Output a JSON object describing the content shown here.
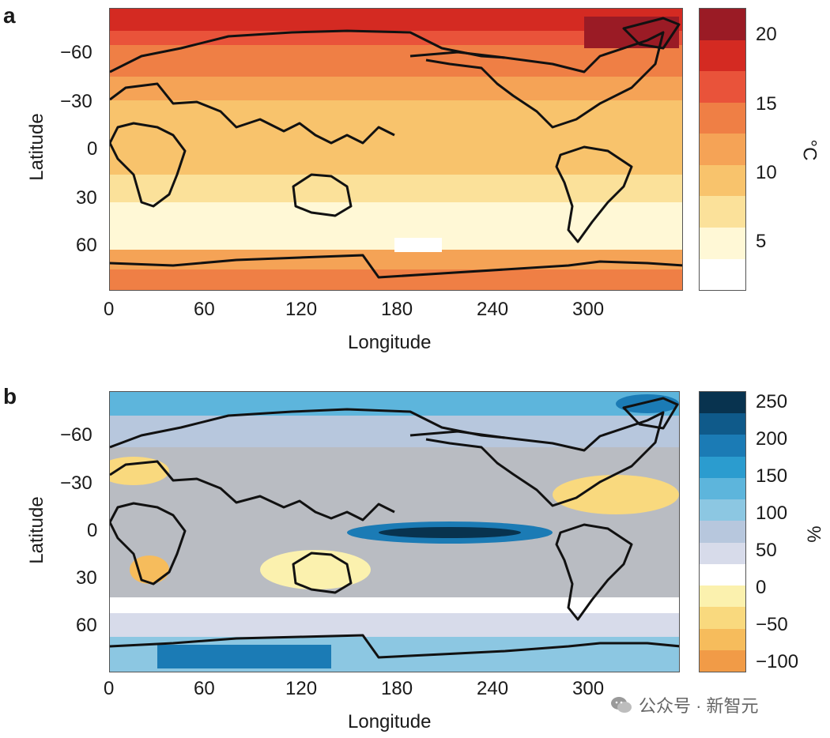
{
  "panels": [
    {
      "letter": "a",
      "ylabel": "Latitude",
      "xlabel": "Longitude",
      "yticks": [
        "−60",
        "−30",
        "0",
        "30",
        "60"
      ],
      "xticks": [
        "0",
        "60",
        "120",
        "180",
        "240",
        "300"
      ],
      "colorbar_unit": "°C",
      "colorbar_ticks": [
        "20",
        "15",
        "10",
        "5"
      ],
      "colorbar_colors": [
        "#9a1b25",
        "#d42a22",
        "#e9533a",
        "#ef7f45",
        "#f5a356",
        "#f8c36c",
        "#fbe19a",
        "#fff8d6",
        "#ffffff"
      ]
    },
    {
      "letter": "b",
      "ylabel": "Latitude",
      "xlabel": "Longitude",
      "yticks": [
        "−60",
        "−30",
        "0",
        "30",
        "60"
      ],
      "xticks": [
        "0",
        "60",
        "120",
        "180",
        "240",
        "300"
      ],
      "colorbar_unit": "%",
      "colorbar_ticks": [
        "250",
        "200",
        "150",
        "100",
        "50",
        "0",
        "−50",
        "−100"
      ],
      "colorbar_colors": [
        "#08334f",
        "#0f5a8a",
        "#1b7bb5",
        "#2b9ccf",
        "#5db5dc",
        "#8cc7e2",
        "#b7c7dd",
        "#d7dbea",
        "#ffffff",
        "#fbf1ae",
        "#f9d97e",
        "#f6bc5c",
        "#f19b47"
      ]
    }
  ],
  "watermark": {
    "text": "公众号 · 新智元",
    "icon": "wechat-icon"
  }
}
